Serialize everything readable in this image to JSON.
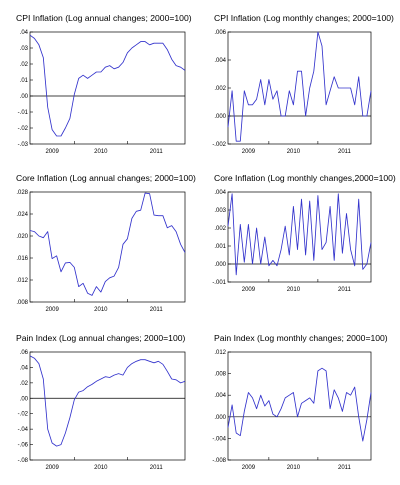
{
  "chart_data": [
    {
      "type": "line",
      "title": "CPI Inflation (Log annual changes; 2000=100)",
      "yticks": [
        ".04",
        ".03",
        ".02",
        ".01",
        ".00",
        "-.01",
        "-.02",
        "-.03"
      ],
      "ylim": [
        -0.03,
        0.04
      ],
      "xticks": [
        "2009",
        "2010",
        "2011"
      ],
      "x": [
        0,
        1,
        2,
        3,
        4,
        5,
        6,
        7,
        8,
        9,
        10,
        11,
        12,
        13,
        14,
        15,
        16,
        17,
        18,
        19,
        20,
        21,
        22,
        23,
        24,
        25,
        26,
        27,
        28,
        29,
        30,
        31,
        32,
        33,
        34,
        35
      ],
      "series": [
        {
          "values": [
            0.038,
            0.036,
            0.032,
            0.024,
            -0.007,
            -0.021,
            -0.025,
            -0.025,
            -0.02,
            -0.014,
            0.001,
            0.011,
            0.013,
            0.011,
            0.013,
            0.015,
            0.015,
            0.018,
            0.019,
            0.017,
            0.018,
            0.021,
            0.027,
            0.03,
            0.032,
            0.034,
            0.034,
            0.032,
            0.033,
            0.033,
            0.033,
            0.029,
            0.023,
            0.019,
            0.018,
            0.016
          ],
          "color": "#3333cc"
        }
      ]
    },
    {
      "type": "line",
      "title": "CPI Inflation (Log monthly changes; 2000=100)",
      "yticks": [
        ".006",
        ".004",
        ".002",
        ".000",
        "-.002"
      ],
      "ylim": [
        -0.002,
        0.006
      ],
      "xticks": [
        "2009",
        "2010",
        "2011"
      ],
      "x": [
        0,
        1,
        2,
        3,
        4,
        5,
        6,
        7,
        8,
        9,
        10,
        11,
        12,
        13,
        14,
        15,
        16,
        17,
        18,
        19,
        20,
        21,
        22,
        23,
        24,
        25,
        26,
        27,
        28,
        29,
        30,
        31,
        32,
        33,
        34,
        35
      ],
      "series": [
        {
          "values": [
            -0.0008,
            0.0018,
            -0.0018,
            -0.0018,
            0.0018,
            0.0008,
            0.0008,
            0.0012,
            0.0026,
            0.0008,
            0.0026,
            0.0012,
            0.0018,
            0.0,
            0.0,
            0.0018,
            0.0008,
            0.0032,
            0.0032,
            0.0,
            0.002,
            0.0032,
            0.006,
            0.005,
            0.0008,
            0.0018,
            0.0028,
            0.002,
            0.002,
            0.002,
            0.002,
            0.0008,
            0.0028,
            0.0,
            0.0,
            0.0018
          ],
          "color": "#3333cc"
        }
      ]
    },
    {
      "type": "line",
      "title": "Core Inflation (Log annual changes; 2000=100)",
      "yticks": [
        ".028",
        ".024",
        ".020",
        ".016",
        ".012",
        ".008"
      ],
      "ylim": [
        0.008,
        0.028
      ],
      "xticks": [
        "2009",
        "2010",
        "2011"
      ],
      "x": [
        0,
        1,
        2,
        3,
        4,
        5,
        6,
        7,
        8,
        9,
        10,
        11,
        12,
        13,
        14,
        15,
        16,
        17,
        18,
        19,
        20,
        21,
        22,
        23,
        24,
        25,
        26,
        27,
        28,
        29,
        30,
        31,
        32,
        33,
        34,
        35
      ],
      "series": [
        {
          "values": [
            0.021,
            0.0208,
            0.02,
            0.0197,
            0.0208,
            0.0159,
            0.0164,
            0.0135,
            0.0151,
            0.0152,
            0.0143,
            0.0108,
            0.0114,
            0.0096,
            0.0092,
            0.0108,
            0.0098,
            0.0117,
            0.0124,
            0.0127,
            0.0143,
            0.0185,
            0.0195,
            0.0232,
            0.0245,
            0.0247,
            0.0278,
            0.0277,
            0.0238,
            0.0237,
            0.0237,
            0.0215,
            0.0219,
            0.0208,
            0.0185,
            0.017
          ],
          "color": "#3333cc"
        }
      ]
    },
    {
      "type": "line",
      "title": "Core Inflation (Log monthly changes,2000=100)",
      "yticks": [
        ".004",
        ".003",
        ".002",
        ".001",
        ".000",
        "-.001"
      ],
      "ylim": [
        -0.001,
        0.004
      ],
      "xticks": [
        "2009",
        "2010",
        "2011"
      ],
      "x": [
        0,
        1,
        2,
        3,
        4,
        5,
        6,
        7,
        8,
        9,
        10,
        11,
        12,
        13,
        14,
        15,
        16,
        17,
        18,
        19,
        20,
        21,
        22,
        23,
        24,
        25,
        26,
        27,
        28,
        29,
        30,
        31,
        32,
        33,
        34,
        35
      ],
      "series": [
        {
          "values": [
            0.0021,
            0.0039,
            -0.0006,
            0.0022,
            0.0001,
            0.0022,
            0.0,
            0.002,
            0.0,
            0.0015,
            -0.0001,
            0.0002,
            -0.0001,
            0.0008,
            0.0021,
            0.0005,
            0.0032,
            0.0008,
            0.0036,
            0.0005,
            0.0035,
            0.0002,
            0.0038,
            0.0008,
            0.0012,
            0.0032,
            0.0002,
            0.0039,
            0.0006,
            0.0028,
            0.0008,
            -0.0001,
            0.0036,
            -0.0003,
            0.0,
            0.0012
          ],
          "color": "#3333cc"
        }
      ]
    },
    {
      "type": "line",
      "title": "Pain Index (Log annual changes; 2000=100)",
      "yticks": [
        ".06",
        ".04",
        ".02",
        ".00",
        "-.02",
        "-.04",
        "-.06",
        "-.08"
      ],
      "ylim": [
        -0.08,
        0.06
      ],
      "xticks": [
        "2009",
        "2010",
        "2011"
      ],
      "x": [
        0,
        1,
        2,
        3,
        4,
        5,
        6,
        7,
        8,
        9,
        10,
        11,
        12,
        13,
        14,
        15,
        16,
        17,
        18,
        19,
        20,
        21,
        22,
        23,
        24,
        25,
        26,
        27,
        28,
        29,
        30,
        31,
        32,
        33,
        34,
        35
      ],
      "series": [
        {
          "values": [
            0.055,
            0.052,
            0.045,
            0.025,
            -0.04,
            -0.058,
            -0.062,
            -0.06,
            -0.045,
            -0.025,
            -0.002,
            0.008,
            0.01,
            0.015,
            0.018,
            0.022,
            0.025,
            0.028,
            0.027,
            0.03,
            0.032,
            0.03,
            0.04,
            0.045,
            0.048,
            0.05,
            0.05,
            0.048,
            0.046,
            0.048,
            0.044,
            0.035,
            0.025,
            0.024,
            0.02,
            0.022
          ],
          "color": "#3333cc"
        }
      ]
    },
    {
      "type": "line",
      "title": "Pain Index (Log monthly changes; 2000=100)",
      "yticks": [
        ".012",
        ".008",
        ".004",
        ".000",
        "-.004",
        "-.008"
      ],
      "ylim": [
        -0.008,
        0.012
      ],
      "xticks": [
        "2009",
        "2010",
        "2011"
      ],
      "x": [
        0,
        1,
        2,
        3,
        4,
        5,
        6,
        7,
        8,
        9,
        10,
        11,
        12,
        13,
        14,
        15,
        16,
        17,
        18,
        19,
        20,
        21,
        22,
        23,
        24,
        25,
        26,
        27,
        28,
        29,
        30,
        31,
        32,
        33,
        34,
        35
      ],
      "series": [
        {
          "values": [
            -0.002,
            0.0022,
            -0.003,
            -0.0035,
            0.001,
            0.0045,
            0.0035,
            0.0015,
            0.004,
            0.002,
            0.003,
            0.0005,
            0.0,
            0.0015,
            0.0035,
            0.004,
            0.0045,
            0.0,
            0.0025,
            0.003,
            0.0035,
            0.0025,
            0.0085,
            0.009,
            0.0085,
            0.0015,
            0.005,
            0.0035,
            0.001,
            0.0045,
            0.004,
            0.0055,
            0.0,
            -0.0045,
            -0.0005,
            0.0045
          ],
          "color": "#3333cc"
        }
      ]
    }
  ]
}
